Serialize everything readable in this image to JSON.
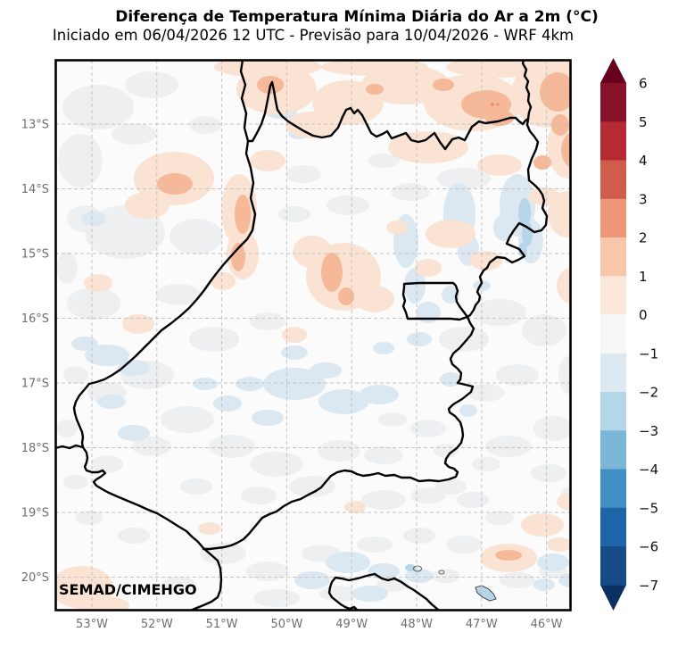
{
  "figure": {
    "title": "Diferença de Temperatura Mínima Diária do Ar a 2m (°C)",
    "subtitle": "Iniciado em 06/04/2026 12 UTC - Previsão para 10/04/2026 - WRF 4km",
    "credit": "SEMAD/CIMEHGO"
  },
  "axes": {
    "lat_ticks": [
      "13°S",
      "14°S",
      "15°S",
      "16°S",
      "17°S",
      "18°S",
      "19°S",
      "20°S"
    ],
    "lon_ticks": [
      "53°W",
      "52°W",
      "51°W",
      "50°W",
      "49°W",
      "48°W",
      "47°W",
      "46°W"
    ]
  },
  "colorbar": {
    "tick_labels": [
      "6",
      "5",
      "4",
      "3",
      "2",
      "1",
      "0",
      "−1",
      "−2",
      "−3",
      "−4",
      "−5",
      "−6",
      "−7"
    ],
    "segment_colors_top_to_bottom": [
      "#871129",
      "#b52a33",
      "#d05c4b",
      "#ee9678",
      "#f8c6a8",
      "#fce8db",
      "#f7f7f7",
      "#dce9f2",
      "#b4d6e9",
      "#7ab6d6",
      "#4090c5",
      "#1d64a9",
      "#174b87"
    ],
    "extend_over_color": "#67001f",
    "extend_under_color": "#0b3161"
  },
  "map_palette": {
    "background": "#fbfbfb",
    "gray_neutral": "#edeff1",
    "pale_blue": "#dbe7f1",
    "blue": "#b6d5e9",
    "pale_orange": "#fae3d3",
    "orange": "#f5b999",
    "red_dot": "#e89372",
    "border": "#000000",
    "grid": "#c3c3c3",
    "tick_label_color": "#6e6e6e",
    "cbar_label_color": "#111111"
  },
  "chart_data": {
    "type": "heatmap",
    "title": "Diferença de Temperatura Mínima Diária do Ar a 2m (°C)",
    "subtitle": "Iniciado em 06/04/2026 12 UTC - Previsão para 10/04/2026 - WRF 4km",
    "units": "°C",
    "x_ticks_deg_west": [
      53,
      52,
      51,
      50,
      49,
      48,
      47,
      46
    ],
    "y_ticks_deg_south": [
      13,
      14,
      15,
      16,
      17,
      18,
      19,
      20
    ],
    "colorbar_ticks": [
      6,
      5,
      4,
      3,
      2,
      1,
      0,
      -1,
      -2,
      -3,
      -4,
      -5,
      -6,
      -7
    ],
    "colorbar_extended_above": 6,
    "colorbar_extended_below": -7,
    "legend_position": "right",
    "grid": true,
    "region": "Goiás state with Distrito Federal rectangle and neighboring state borders",
    "notable_features": [
      "Weak warm anomalies (0 to +2 °C, small cores +2 to +3 °C) across the north and northeast near the Tocantins/Bahia borders",
      "Warm patches along the Araguaia river (~50.5°W, 13–15°S) and in the center (~49.5°W, 15–16°S)",
      "Cool anomalies (0 to −3 °C) along the eastern border near 46.3°W, 14–15°S and near 47°W, 20.2°S",
      "Mostly neutral (−1 to +1 °C) over central, western and southern Goiás",
      "Warm patch at the southwest map corner (~53.3°W, 20°S) and southeast (~46.5°W, 19.5°S)"
    ],
    "credit": "SEMAD/CIMEHGO"
  }
}
